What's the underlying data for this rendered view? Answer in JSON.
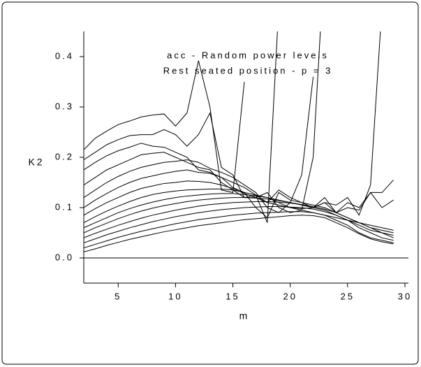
{
  "chart_data": {
    "type": "line",
    "annotations": [
      "acc - Random power levels",
      "Rest seated position - p = 3"
    ],
    "x_label": "m",
    "y_label": "K2",
    "x": [
      2,
      3,
      4,
      5,
      6,
      7,
      8,
      9,
      10,
      11,
      12,
      13,
      14,
      15,
      16,
      17,
      18,
      19,
      20,
      21,
      22,
      23,
      24,
      25,
      26,
      27,
      28,
      29
    ],
    "xlim": [
      2,
      30
    ],
    "xticks": [
      5,
      10,
      15,
      20,
      25,
      30
    ],
    "ylim": [
      -0.05,
      0.45
    ],
    "yticks": [
      {
        "value": 0,
        "label": "0.0"
      },
      0.1,
      0.2,
      0.3,
      0.4
    ],
    "grid": false,
    "series": [
      {
        "color": "#000000",
        "values": [
          0.215,
          0.238,
          0.252,
          0.265,
          0.272,
          0.28,
          0.284,
          0.286,
          0.262,
          0.288,
          0.392,
          0.3,
          0.135,
          0.13,
          0.35,
          null,
          null,
          null,
          null,
          null,
          null,
          null,
          null,
          null,
          null,
          null,
          null,
          null
        ]
      },
      {
        "color": "#000000",
        "values": [
          0.195,
          0.21,
          0.225,
          0.235,
          0.243,
          0.245,
          0.245,
          0.255,
          0.245,
          0.222,
          0.245,
          0.288,
          0.18,
          0.165,
          0.12,
          0.125,
          0.11,
          0.135,
          0.12,
          0.11,
          0.105,
          0.1,
          0.09,
          0.11,
          0.1,
          0.13,
          0.13,
          0.155
        ]
      },
      {
        "color": "#000000",
        "values": [
          0.175,
          0.19,
          0.203,
          0.213,
          0.22,
          0.228,
          0.222,
          0.22,
          0.21,
          0.2,
          0.175,
          0.17,
          0.16,
          0.14,
          0.13,
          0.1,
          0.08,
          0.13,
          0.115,
          0.11,
          0.1,
          0.12,
          0.09,
          0.1,
          0.095,
          0.13,
          0.1,
          0.115
        ]
      },
      {
        "color": "#000000",
        "values": [
          0.145,
          0.16,
          0.175,
          0.185,
          0.195,
          0.205,
          0.208,
          0.21,
          0.2,
          0.19,
          0.18,
          0.175,
          0.15,
          0.135,
          0.12,
          0.12,
          0.13,
          0.1,
          0.09,
          0.095,
          0.2,
          0.6,
          null,
          null,
          null,
          null,
          null,
          null
        ]
      },
      {
        "color": "#000000",
        "values": [
          0.12,
          0.135,
          0.15,
          0.162,
          0.172,
          0.18,
          0.185,
          0.19,
          0.192,
          0.195,
          0.19,
          0.178,
          0.17,
          0.16,
          0.145,
          0.13,
          0.1,
          0.09,
          0.11,
          0.165,
          0.36,
          null,
          null,
          null,
          null,
          null,
          null,
          null
        ]
      },
      {
        "color": "#000000",
        "values": [
          0.1,
          0.115,
          0.128,
          0.14,
          0.15,
          0.158,
          0.163,
          0.168,
          0.172,
          0.175,
          0.17,
          0.168,
          0.16,
          0.15,
          0.14,
          0.125,
          0.07,
          0.5,
          null,
          null,
          null,
          null,
          null,
          null,
          null,
          null,
          null,
          null
        ]
      },
      {
        "color": "#000000",
        "values": [
          0.085,
          0.098,
          0.11,
          0.12,
          0.13,
          0.138,
          0.143,
          0.148,
          0.15,
          0.153,
          0.152,
          0.15,
          0.145,
          0.138,
          0.128,
          0.12,
          0.11,
          0.105,
          0.1,
          0.098,
          0.1,
          0.11,
          0.105,
          0.12,
          0.085,
          0.145,
          0.5,
          null
        ]
      },
      {
        "color": "#000000",
        "values": [
          0.07,
          0.082,
          0.093,
          0.103,
          0.112,
          0.12,
          0.126,
          0.13,
          0.133,
          0.135,
          0.136,
          0.137,
          0.137,
          0.135,
          0.13,
          0.125,
          0.12,
          0.11,
          0.1,
          0.095,
          0.09,
          0.085,
          0.08,
          0.075,
          0.07,
          0.065,
          0.06,
          0.055
        ]
      },
      {
        "color": "#000000",
        "values": [
          0.06,
          0.07,
          0.08,
          0.09,
          0.098,
          0.105,
          0.111,
          0.116,
          0.12,
          0.123,
          0.125,
          0.127,
          0.128,
          0.128,
          0.126,
          0.123,
          0.12,
          0.115,
          0.11,
          0.105,
          0.1,
          0.11,
          0.09,
          0.08,
          0.07,
          0.06,
          0.055,
          0.05
        ]
      },
      {
        "color": "#000000",
        "values": [
          0.05,
          0.06,
          0.069,
          0.078,
          0.086,
          0.093,
          0.099,
          0.104,
          0.108,
          0.112,
          0.115,
          0.117,
          0.119,
          0.12,
          0.12,
          0.119,
          0.117,
          0.114,
          0.11,
          0.106,
          0.1,
          0.095,
          0.085,
          0.075,
          0.065,
          0.055,
          0.05,
          0.045
        ]
      },
      {
        "color": "#000000",
        "values": [
          0.04,
          0.049,
          0.057,
          0.065,
          0.072,
          0.079,
          0.085,
          0.09,
          0.095,
          0.099,
          0.103,
          0.106,
          0.108,
          0.11,
          0.111,
          0.112,
          0.112,
          0.111,
          0.109,
          0.106,
          0.102,
          0.097,
          0.09,
          0.08,
          0.07,
          0.06,
          0.05,
          0.04
        ]
      },
      {
        "color": "#000000",
        "values": [
          0.03,
          0.038,
          0.046,
          0.053,
          0.06,
          0.066,
          0.072,
          0.077,
          0.082,
          0.086,
          0.09,
          0.093,
          0.096,
          0.098,
          0.1,
          0.101,
          0.102,
          0.102,
          0.101,
          0.1,
          0.097,
          0.092,
          0.085,
          0.075,
          0.06,
          0.05,
          0.04,
          0.035
        ]
      },
      {
        "color": "#000000",
        "values": [
          0.02,
          0.027,
          0.034,
          0.041,
          0.047,
          0.053,
          0.058,
          0.063,
          0.068,
          0.072,
          0.076,
          0.079,
          0.082,
          0.085,
          0.087,
          0.089,
          0.09,
          0.091,
          0.092,
          0.092,
          0.09,
          0.085,
          0.075,
          0.065,
          0.05,
          0.04,
          0.035,
          0.03
        ]
      },
      {
        "color": "#000000",
        "values": [
          0.012,
          0.018,
          0.025,
          0.031,
          0.037,
          0.042,
          0.047,
          0.052,
          0.056,
          0.06,
          0.064,
          0.067,
          0.07,
          0.073,
          0.076,
          0.078,
          0.08,
          0.082,
          0.084,
          0.085,
          0.084,
          0.08,
          0.07,
          0.06,
          0.048,
          0.038,
          0.032,
          0.028
        ]
      }
    ]
  }
}
